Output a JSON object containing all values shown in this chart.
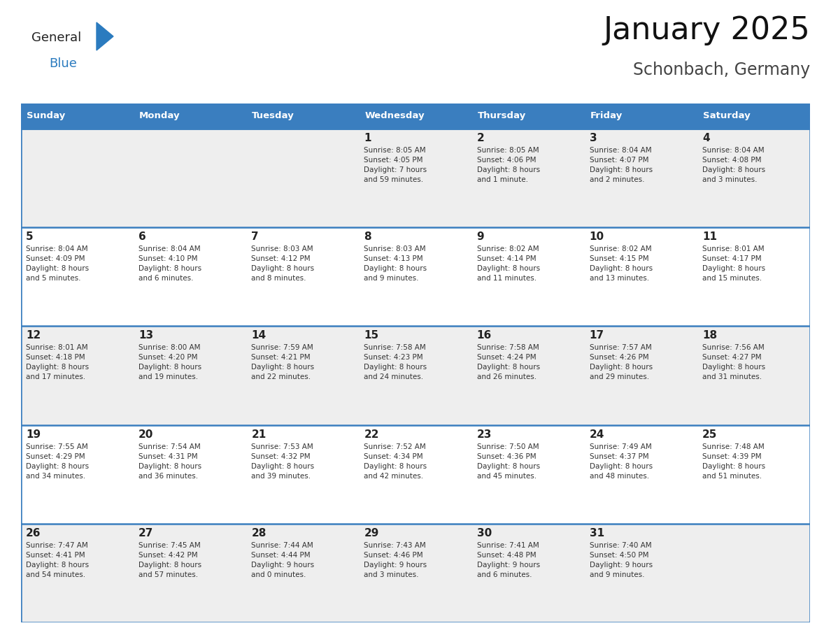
{
  "title": "January 2025",
  "subtitle": "Schonbach, Germany",
  "header_color": "#3a7ebf",
  "header_text_color": "#ffffff",
  "day_names": [
    "Sunday",
    "Monday",
    "Tuesday",
    "Wednesday",
    "Thursday",
    "Friday",
    "Saturday"
  ],
  "background_color": "#ffffff",
  "row_colors": [
    "#eeeeee",
    "#ffffff",
    "#eeeeee",
    "#ffffff",
    "#eeeeee"
  ],
  "border_color": "#3a7ebf",
  "text_color": "#333333",
  "logo_general_color": "#222222",
  "logo_blue_color": "#2b7bbf",
  "calendar": [
    [
      {
        "day": "",
        "info": ""
      },
      {
        "day": "",
        "info": ""
      },
      {
        "day": "",
        "info": ""
      },
      {
        "day": "1",
        "info": "Sunrise: 8:05 AM\nSunset: 4:05 PM\nDaylight: 7 hours\nand 59 minutes."
      },
      {
        "day": "2",
        "info": "Sunrise: 8:05 AM\nSunset: 4:06 PM\nDaylight: 8 hours\nand 1 minute."
      },
      {
        "day": "3",
        "info": "Sunrise: 8:04 AM\nSunset: 4:07 PM\nDaylight: 8 hours\nand 2 minutes."
      },
      {
        "day": "4",
        "info": "Sunrise: 8:04 AM\nSunset: 4:08 PM\nDaylight: 8 hours\nand 3 minutes."
      }
    ],
    [
      {
        "day": "5",
        "info": "Sunrise: 8:04 AM\nSunset: 4:09 PM\nDaylight: 8 hours\nand 5 minutes."
      },
      {
        "day": "6",
        "info": "Sunrise: 8:04 AM\nSunset: 4:10 PM\nDaylight: 8 hours\nand 6 minutes."
      },
      {
        "day": "7",
        "info": "Sunrise: 8:03 AM\nSunset: 4:12 PM\nDaylight: 8 hours\nand 8 minutes."
      },
      {
        "day": "8",
        "info": "Sunrise: 8:03 AM\nSunset: 4:13 PM\nDaylight: 8 hours\nand 9 minutes."
      },
      {
        "day": "9",
        "info": "Sunrise: 8:02 AM\nSunset: 4:14 PM\nDaylight: 8 hours\nand 11 minutes."
      },
      {
        "day": "10",
        "info": "Sunrise: 8:02 AM\nSunset: 4:15 PM\nDaylight: 8 hours\nand 13 minutes."
      },
      {
        "day": "11",
        "info": "Sunrise: 8:01 AM\nSunset: 4:17 PM\nDaylight: 8 hours\nand 15 minutes."
      }
    ],
    [
      {
        "day": "12",
        "info": "Sunrise: 8:01 AM\nSunset: 4:18 PM\nDaylight: 8 hours\nand 17 minutes."
      },
      {
        "day": "13",
        "info": "Sunrise: 8:00 AM\nSunset: 4:20 PM\nDaylight: 8 hours\nand 19 minutes."
      },
      {
        "day": "14",
        "info": "Sunrise: 7:59 AM\nSunset: 4:21 PM\nDaylight: 8 hours\nand 22 minutes."
      },
      {
        "day": "15",
        "info": "Sunrise: 7:58 AM\nSunset: 4:23 PM\nDaylight: 8 hours\nand 24 minutes."
      },
      {
        "day": "16",
        "info": "Sunrise: 7:58 AM\nSunset: 4:24 PM\nDaylight: 8 hours\nand 26 minutes."
      },
      {
        "day": "17",
        "info": "Sunrise: 7:57 AM\nSunset: 4:26 PM\nDaylight: 8 hours\nand 29 minutes."
      },
      {
        "day": "18",
        "info": "Sunrise: 7:56 AM\nSunset: 4:27 PM\nDaylight: 8 hours\nand 31 minutes."
      }
    ],
    [
      {
        "day": "19",
        "info": "Sunrise: 7:55 AM\nSunset: 4:29 PM\nDaylight: 8 hours\nand 34 minutes."
      },
      {
        "day": "20",
        "info": "Sunrise: 7:54 AM\nSunset: 4:31 PM\nDaylight: 8 hours\nand 36 minutes."
      },
      {
        "day": "21",
        "info": "Sunrise: 7:53 AM\nSunset: 4:32 PM\nDaylight: 8 hours\nand 39 minutes."
      },
      {
        "day": "22",
        "info": "Sunrise: 7:52 AM\nSunset: 4:34 PM\nDaylight: 8 hours\nand 42 minutes."
      },
      {
        "day": "23",
        "info": "Sunrise: 7:50 AM\nSunset: 4:36 PM\nDaylight: 8 hours\nand 45 minutes."
      },
      {
        "day": "24",
        "info": "Sunrise: 7:49 AM\nSunset: 4:37 PM\nDaylight: 8 hours\nand 48 minutes."
      },
      {
        "day": "25",
        "info": "Sunrise: 7:48 AM\nSunset: 4:39 PM\nDaylight: 8 hours\nand 51 minutes."
      }
    ],
    [
      {
        "day": "26",
        "info": "Sunrise: 7:47 AM\nSunset: 4:41 PM\nDaylight: 8 hours\nand 54 minutes."
      },
      {
        "day": "27",
        "info": "Sunrise: 7:45 AM\nSunset: 4:42 PM\nDaylight: 8 hours\nand 57 minutes."
      },
      {
        "day": "28",
        "info": "Sunrise: 7:44 AM\nSunset: 4:44 PM\nDaylight: 9 hours\nand 0 minutes."
      },
      {
        "day": "29",
        "info": "Sunrise: 7:43 AM\nSunset: 4:46 PM\nDaylight: 9 hours\nand 3 minutes."
      },
      {
        "day": "30",
        "info": "Sunrise: 7:41 AM\nSunset: 4:48 PM\nDaylight: 9 hours\nand 6 minutes."
      },
      {
        "day": "31",
        "info": "Sunrise: 7:40 AM\nSunset: 4:50 PM\nDaylight: 9 hours\nand 9 minutes."
      },
      {
        "day": "",
        "info": ""
      }
    ]
  ]
}
